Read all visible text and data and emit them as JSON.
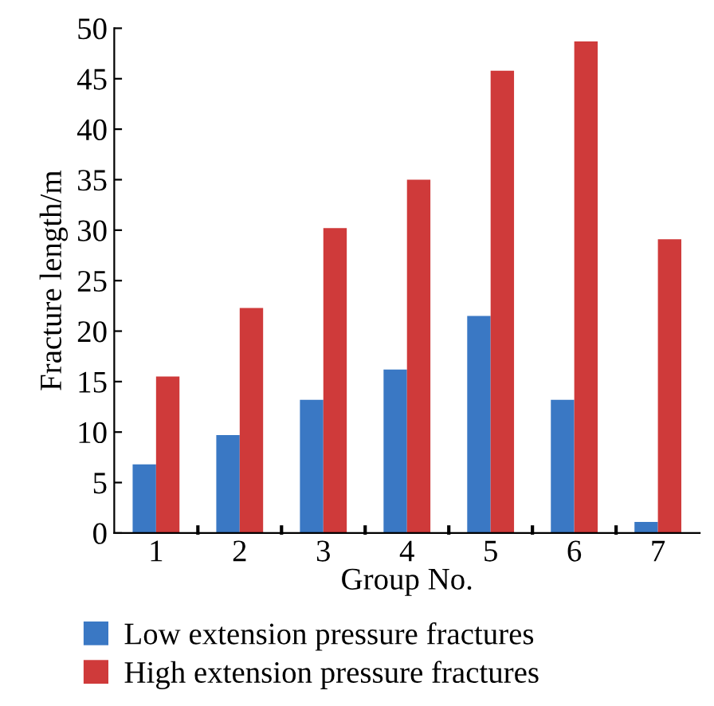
{
  "chart_data": {
    "type": "bar",
    "xlabel": "Group No.",
    "ylabel": "Fracture length/m",
    "categories": [
      "1",
      "2",
      "3",
      "4",
      "5",
      "6",
      "7"
    ],
    "series": [
      {
        "name": "Low extension pressure fractures",
        "color": "#3a78c4",
        "values": [
          6.8,
          9.7,
          13.2,
          16.2,
          21.5,
          13.2,
          1.1
        ]
      },
      {
        "name": "High extension pressure fractures",
        "color": "#cf3a3a",
        "values": [
          15.5,
          22.3,
          30.2,
          35.0,
          45.8,
          48.7,
          29.1
        ]
      }
    ],
    "ylim": [
      0,
      50
    ],
    "yticks": [
      0,
      5,
      10,
      15,
      20,
      25,
      30,
      35,
      40,
      45,
      50
    ],
    "grid": false,
    "legend": "bottom"
  }
}
